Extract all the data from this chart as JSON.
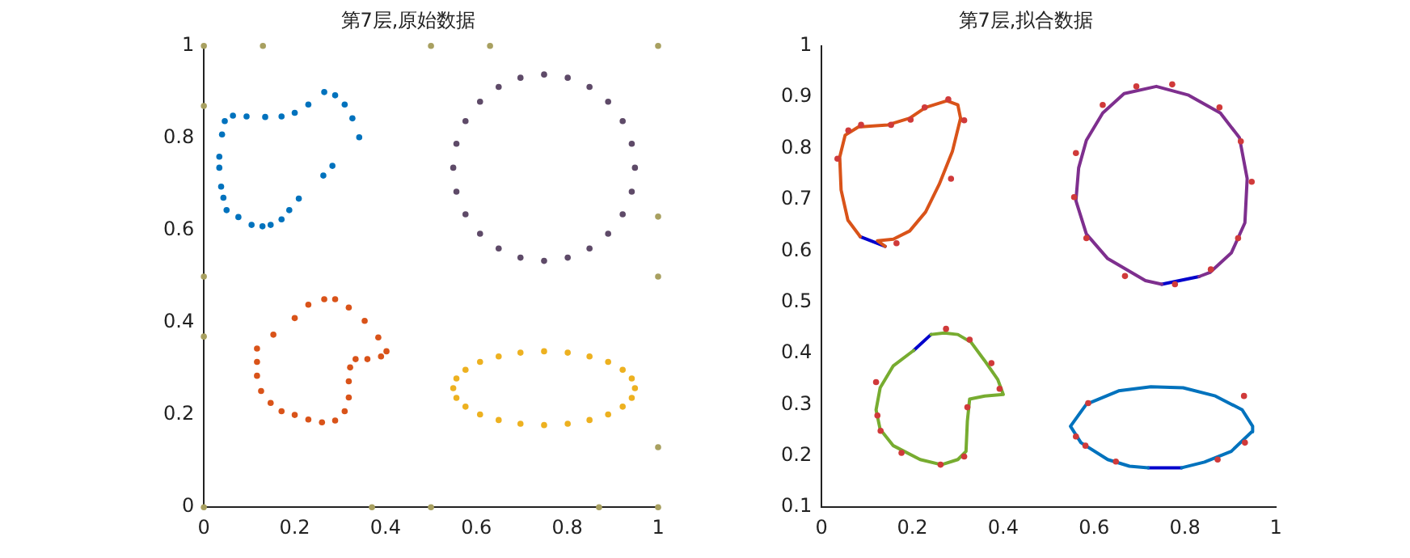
{
  "chart_data": [
    {
      "type": "scatter",
      "title": "第7层,原始数据",
      "xlim": [
        0,
        1
      ],
      "ylim": [
        0,
        1
      ],
      "xticks": [
        0,
        0.2,
        0.4,
        0.6,
        0.8,
        1
      ],
      "yticks": [
        0,
        0.2,
        0.4,
        0.6,
        0.8,
        1
      ],
      "grid": false,
      "legend": false,
      "marker": "circle",
      "series": [
        {
          "type": "scatter",
          "color": "#0072bd",
          "x": [
            0.263,
            0.283,
            0.209,
            0.188,
            0.171,
            0.147,
            0.129,
            0.105,
            0.076,
            0.05,
            0.043,
            0.038,
            0.034,
            0.034,
            0.04,
            0.046,
            0.064,
            0.094,
            0.135,
            0.171,
            0.2,
            0.23,
            0.265,
            0.289,
            0.31,
            0.327,
            0.342
          ],
          "values": [
            0.719,
            0.74,
            0.669,
            0.644,
            0.624,
            0.612,
            0.609,
            0.612,
            0.629,
            0.644,
            0.671,
            0.695,
            0.736,
            0.76,
            0.808,
            0.837,
            0.849,
            0.847,
            0.846,
            0.847,
            0.855,
            0.873,
            0.9,
            0.893,
            0.873,
            0.843,
            0.802
          ]
        },
        {
          "type": "scatter",
          "color": "#5e4a68",
          "x": [
            0.949,
            0.942,
            0.922,
            0.89,
            0.849,
            0.801,
            0.749,
            0.697,
            0.649,
            0.608,
            0.576,
            0.556,
            0.549,
            0.556,
            0.576,
            0.608,
            0.649,
            0.697,
            0.749,
            0.801,
            0.849,
            0.89,
            0.922,
            0.942
          ],
          "values": [
            0.736,
            0.788,
            0.837,
            0.879,
            0.911,
            0.931,
            0.938,
            0.931,
            0.911,
            0.879,
            0.837,
            0.788,
            0.736,
            0.684,
            0.635,
            0.593,
            0.561,
            0.541,
            0.534,
            0.541,
            0.561,
            0.593,
            0.635,
            0.684
          ]
        },
        {
          "type": "scatter",
          "color": "#d95319",
          "x": [
            0.117,
            0.153,
            0.2,
            0.23,
            0.265,
            0.289,
            0.319,
            0.354,
            0.384,
            0.402,
            0.39,
            0.36,
            0.334,
            0.322,
            0.319,
            0.319,
            0.31,
            0.289,
            0.26,
            0.23,
            0.2,
            0.171,
            0.147,
            0.126,
            0.117,
            0.117
          ],
          "values": [
            0.344,
            0.374,
            0.41,
            0.439,
            0.451,
            0.451,
            0.433,
            0.404,
            0.368,
            0.338,
            0.327,
            0.321,
            0.321,
            0.303,
            0.273,
            0.238,
            0.208,
            0.188,
            0.184,
            0.19,
            0.2,
            0.208,
            0.226,
            0.252,
            0.285,
            0.315
          ]
        },
        {
          "type": "scatter",
          "color": "#edb120",
          "x": [
            0.949,
            0.942,
            0.922,
            0.89,
            0.849,
            0.801,
            0.749,
            0.697,
            0.649,
            0.608,
            0.576,
            0.556,
            0.549,
            0.556,
            0.576,
            0.608,
            0.649,
            0.697,
            0.749,
            0.801,
            0.849,
            0.89,
            0.922,
            0.942
          ],
          "values": [
            0.258,
            0.279,
            0.298,
            0.315,
            0.327,
            0.335,
            0.338,
            0.335,
            0.327,
            0.315,
            0.298,
            0.279,
            0.258,
            0.237,
            0.218,
            0.201,
            0.189,
            0.181,
            0.178,
            0.181,
            0.189,
            0.201,
            0.218,
            0.237
          ]
        },
        {
          "type": "scatter",
          "color": "#a8a060",
          "x": [
            0,
            0.13,
            0.5,
            0.63,
            1,
            1,
            1,
            1,
            1,
            0.87,
            0.5,
            0.37,
            0,
            0,
            0,
            0
          ],
          "values": [
            1,
            1,
            1,
            1,
            1,
            0.63,
            0.5,
            0.13,
            0,
            0,
            0,
            0,
            0,
            0.37,
            0.5,
            0.87
          ]
        }
      ]
    },
    {
      "type": "scatter",
      "title": "第7层,拟合数据",
      "xlim": [
        0,
        1
      ],
      "ylim": [
        0.1,
        1
      ],
      "xticks": [
        0,
        0.2,
        0.4,
        0.6,
        0.8,
        1
      ],
      "yticks": [
        0.1,
        0.2,
        0.3,
        0.4,
        0.5,
        0.6,
        0.7,
        0.8,
        0.9,
        1
      ],
      "grid": false,
      "legend": false,
      "marker": "circle",
      "series": [
        {
          "type": "line",
          "marker": "none",
          "color": "#d95319",
          "x": [
            0.085,
            0.058,
            0.043,
            0.04,
            0.052,
            0.081,
            0.146,
            0.194,
            0.229,
            0.276,
            0.3,
            0.306,
            0.288,
            0.259,
            0.229,
            0.194,
            0.158,
            0.123,
            0.14
          ],
          "values": [
            0.628,
            0.66,
            0.719,
            0.783,
            0.826,
            0.842,
            0.846,
            0.859,
            0.88,
            0.893,
            0.885,
            0.859,
            0.794,
            0.73,
            0.676,
            0.639,
            0.623,
            0.62,
            0.609
          ]
        },
        {
          "type": "line",
          "marker": "none",
          "color": "#7e2f8e",
          "x": [
            0.831,
            0.855,
            0.902,
            0.932,
            0.937,
            0.92,
            0.878,
            0.808,
            0.737,
            0.666,
            0.619,
            0.583,
            0.566,
            0.56,
            0.583,
            0.63,
            0.713,
            0.749
          ],
          "values": [
            0.55,
            0.558,
            0.596,
            0.655,
            0.741,
            0.821,
            0.869,
            0.904,
            0.921,
            0.907,
            0.869,
            0.816,
            0.762,
            0.698,
            0.633,
            0.585,
            0.542,
            0.535
          ]
        },
        {
          "type": "line",
          "marker": "none",
          "color": "#77ac30",
          "x": [
            0.241,
            0.27,
            0.3,
            0.329,
            0.359,
            0.388,
            0.4,
            0.359,
            0.326,
            0.321,
            0.318,
            0.3,
            0.264,
            0.217,
            0.158,
            0.129,
            0.12,
            0.129,
            0.158,
            0.203
          ],
          "values": [
            0.437,
            0.44,
            0.437,
            0.422,
            0.386,
            0.349,
            0.32,
            0.317,
            0.311,
            0.268,
            0.209,
            0.193,
            0.183,
            0.193,
            0.22,
            0.252,
            0.29,
            0.333,
            0.376,
            0.406
          ]
        },
        {
          "type": "line",
          "marker": "none",
          "color": "#0072bd",
          "x": [
            0.793,
            0.843,
            0.902,
            0.947,
            0.949,
            0.926,
            0.867,
            0.796,
            0.725,
            0.654,
            0.583,
            0.548,
            0.571,
            0.63,
            0.678,
            0.719
          ],
          "values": [
            0.177,
            0.188,
            0.209,
            0.247,
            0.258,
            0.29,
            0.317,
            0.333,
            0.335,
            0.327,
            0.301,
            0.258,
            0.226,
            0.193,
            0.18,
            0.177
          ]
        },
        {
          "type": "line",
          "marker": "none",
          "color": "#0000cc",
          "x": [
            0.085,
            0.14,
            null,
            0.749,
            0.831,
            null,
            0.203,
            0.241,
            null,
            0.719,
            0.793
          ],
          "values": [
            0.628,
            0.609,
            null,
            0.535,
            0.55,
            null,
            0.406,
            0.437,
            null,
            0.177,
            0.177
          ]
        },
        {
          "type": "scatter",
          "color": "#d03a3a",
          "x": [
            0.035,
            0.059,
            0.087,
            0.153,
            0.196,
            0.227,
            0.279,
            0.314,
            0.285,
            0.165,
            0.693,
            0.772,
            0.876,
            0.923,
            0.947,
            0.917,
            0.857,
            0.778,
            0.668,
            0.583,
            0.556,
            0.56,
            0.619,
            0.12,
            0.274,
            0.326,
            0.374,
            0.392,
            0.321,
            0.314,
            0.262,
            0.176,
            0.13,
            0.123,
            0.56,
            0.581,
            0.648,
            0.872,
            0.932,
            0.93,
            0.587
          ],
          "values": [
            0.78,
            0.835,
            0.846,
            0.846,
            0.856,
            0.88,
            0.896,
            0.855,
            0.741,
            0.615,
            0.921,
            0.925,
            0.88,
            0.814,
            0.735,
            0.625,
            0.564,
            0.535,
            0.551,
            0.625,
            0.705,
            0.791,
            0.885,
            0.344,
            0.448,
            0.427,
            0.381,
            0.331,
            0.295,
            0.199,
            0.183,
            0.206,
            0.249,
            0.279,
            0.238,
            0.22,
            0.189,
            0.193,
            0.226,
            0.317,
            0.303
          ]
        }
      ]
    }
  ]
}
